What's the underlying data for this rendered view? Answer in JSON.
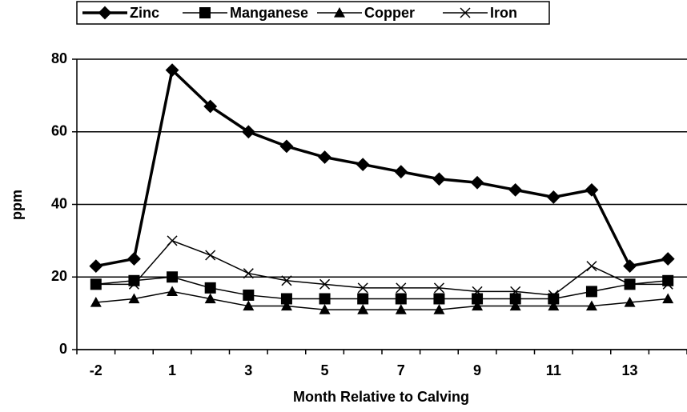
{
  "chart_data": {
    "type": "line",
    "xlabel": "Month Relative to Calving",
    "ylabel": "ppm",
    "categories": [
      "-2",
      null,
      "1",
      null,
      "3",
      null,
      "5",
      null,
      "7",
      null,
      "9",
      null,
      "11",
      null,
      "13",
      null
    ],
    "series": [
      {
        "name": "Zinc",
        "color": "#000000",
        "marker": "diamond",
        "line_width": 3.5,
        "values": [
          23,
          25,
          77,
          67,
          60,
          56,
          53,
          51,
          49,
          47,
          46,
          44,
          42,
          44,
          23,
          25
        ]
      },
      {
        "name": "Manganese",
        "color": "#000000",
        "marker": "square",
        "line_width": 1.5,
        "values": [
          18,
          19,
          20,
          17,
          15,
          14,
          14,
          14,
          14,
          14,
          14,
          14,
          14,
          16,
          18,
          19
        ]
      },
      {
        "name": "Copper",
        "color": "#000000",
        "marker": "triangle",
        "line_width": 1.5,
        "values": [
          13,
          14,
          16,
          14,
          12,
          12,
          11,
          11,
          11,
          11,
          12,
          12,
          12,
          12,
          13,
          14
        ]
      },
      {
        "name": "Iron",
        "color": "#000000",
        "marker": "x",
        "line_width": 1.5,
        "values": [
          18,
          18,
          30,
          26,
          21,
          19,
          18,
          17,
          17,
          17,
          16,
          16,
          15,
          23,
          18,
          18
        ]
      }
    ],
    "ylim": [
      0,
      80
    ],
    "yticks": [
      0,
      20,
      40,
      60,
      80
    ],
    "grid": true,
    "legend": "top"
  }
}
